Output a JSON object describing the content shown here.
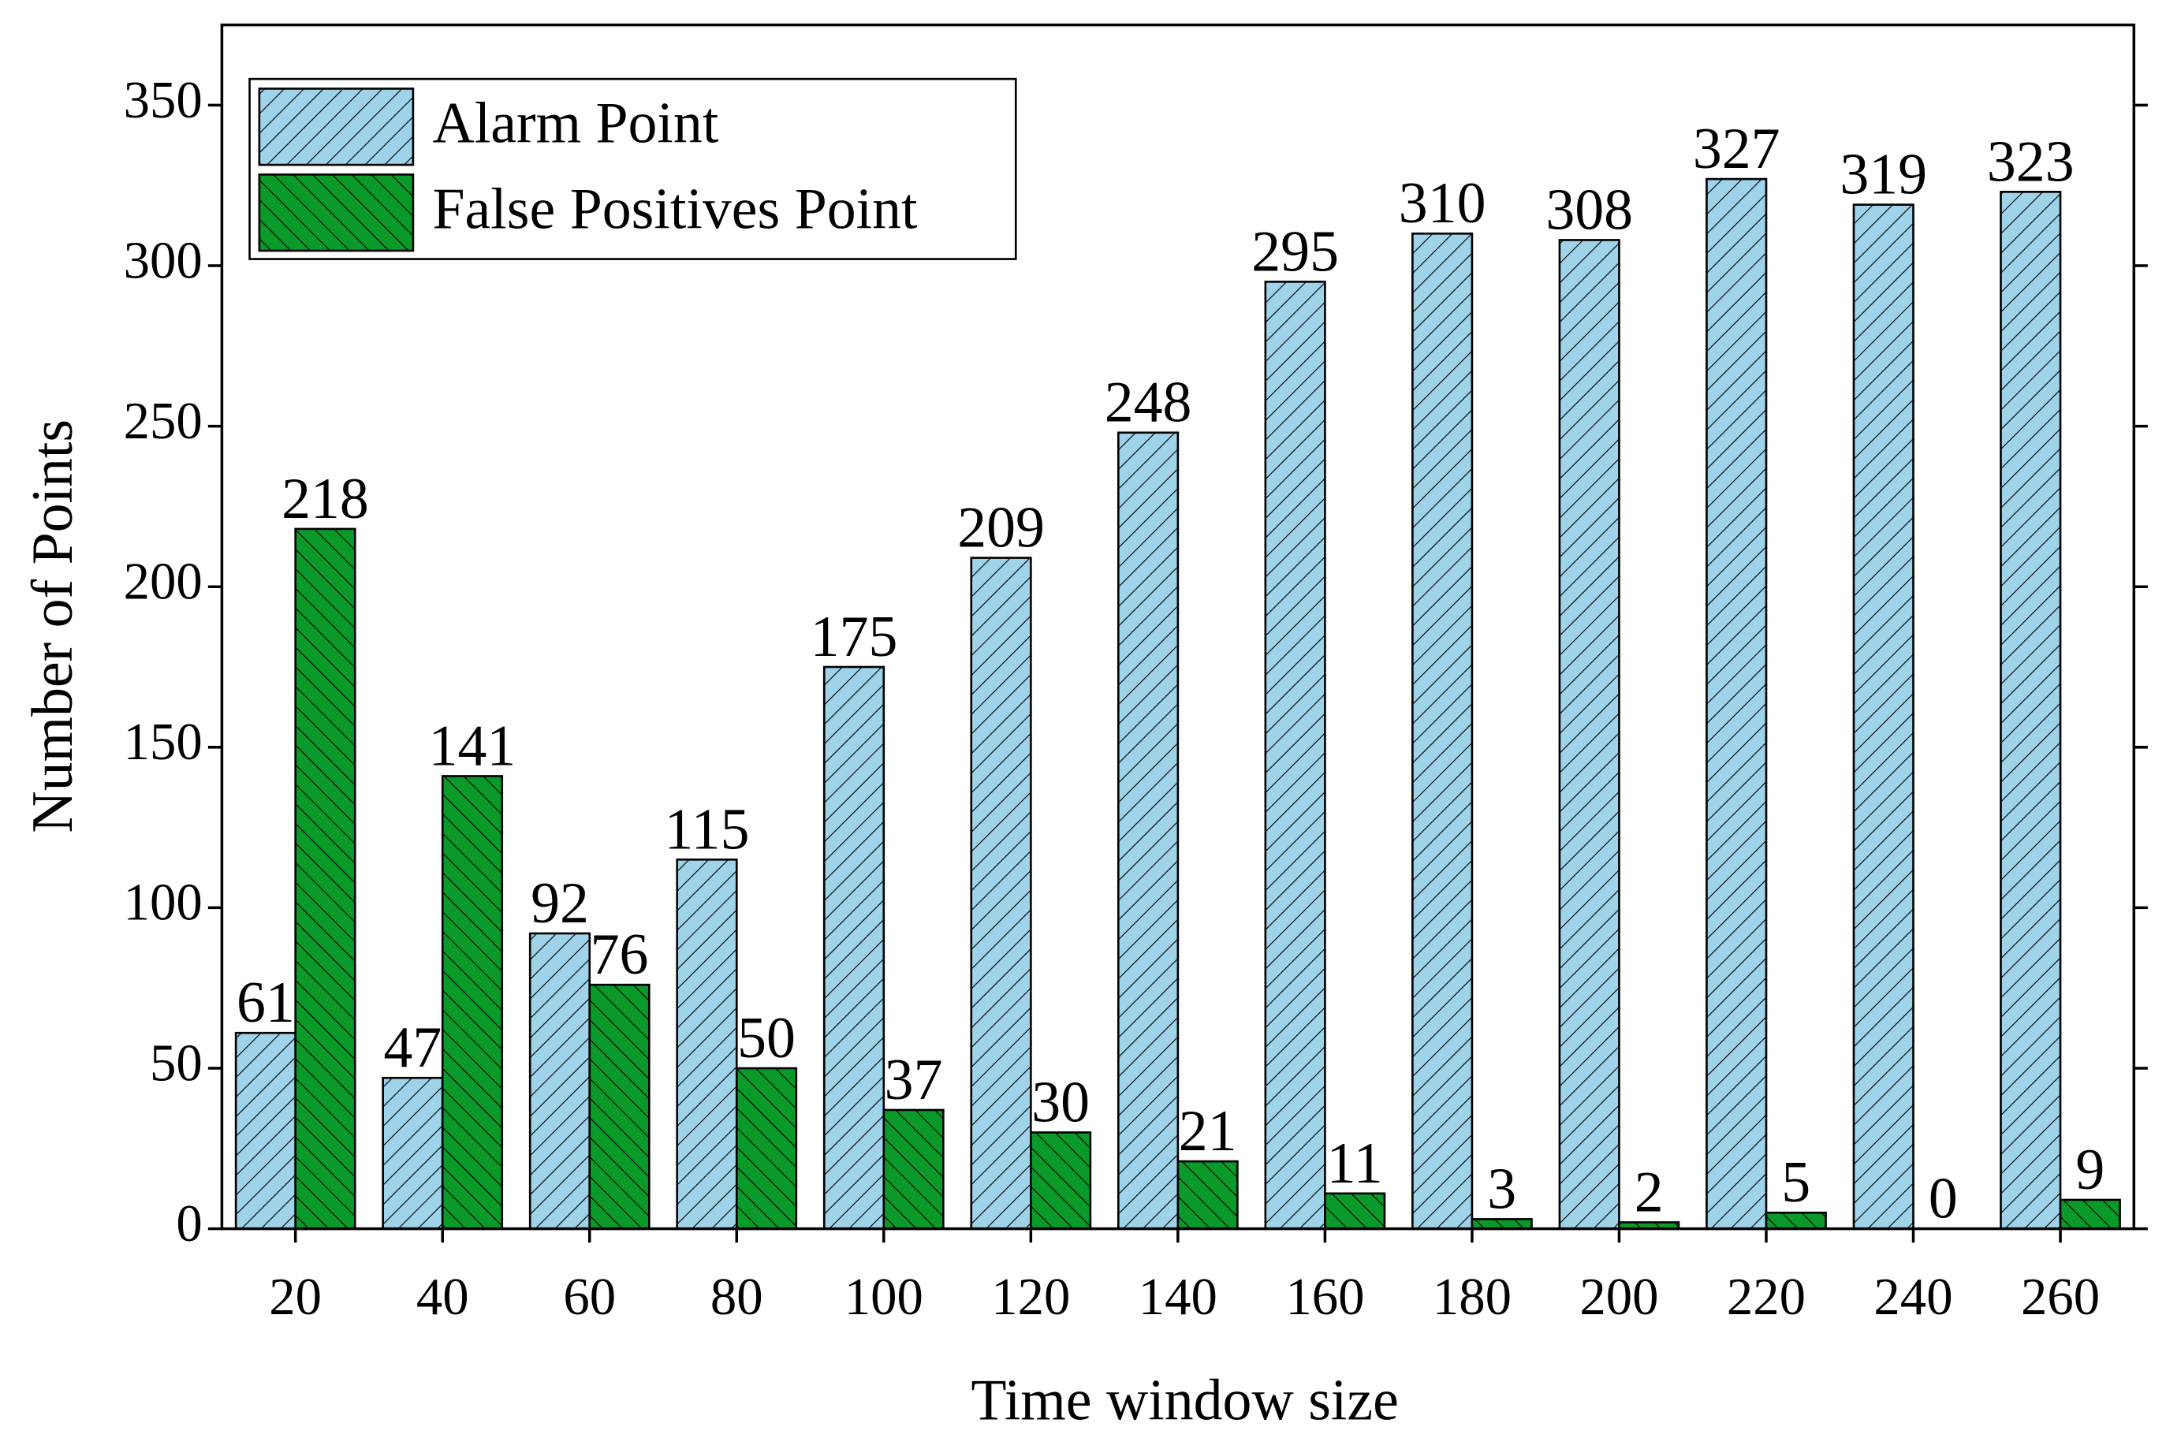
{
  "chart_data": {
    "type": "bar",
    "x_label": "Time window size",
    "y_label": "Number of Points",
    "categories": [
      "20",
      "40",
      "60",
      "80",
      "100",
      "120",
      "140",
      "160",
      "180",
      "200",
      "220",
      "240",
      "260"
    ],
    "series": [
      {
        "name": "Alarm Point",
        "color": "#9fd3ea",
        "values": [
          61,
          47,
          92,
          115,
          175,
          209,
          248,
          295,
          310,
          308,
          327,
          319,
          323
        ]
      },
      {
        "name": "False Positives Point",
        "color": "#0a9a2a",
        "values": [
          218,
          141,
          76,
          50,
          37,
          30,
          21,
          11,
          3,
          2,
          5,
          0,
          9
        ]
      }
    ],
    "ylim": [
      0,
      375
    ],
    "yticks": [
      0,
      50,
      100,
      150,
      200,
      250,
      300,
      350
    ],
    "legend": "upper left"
  }
}
